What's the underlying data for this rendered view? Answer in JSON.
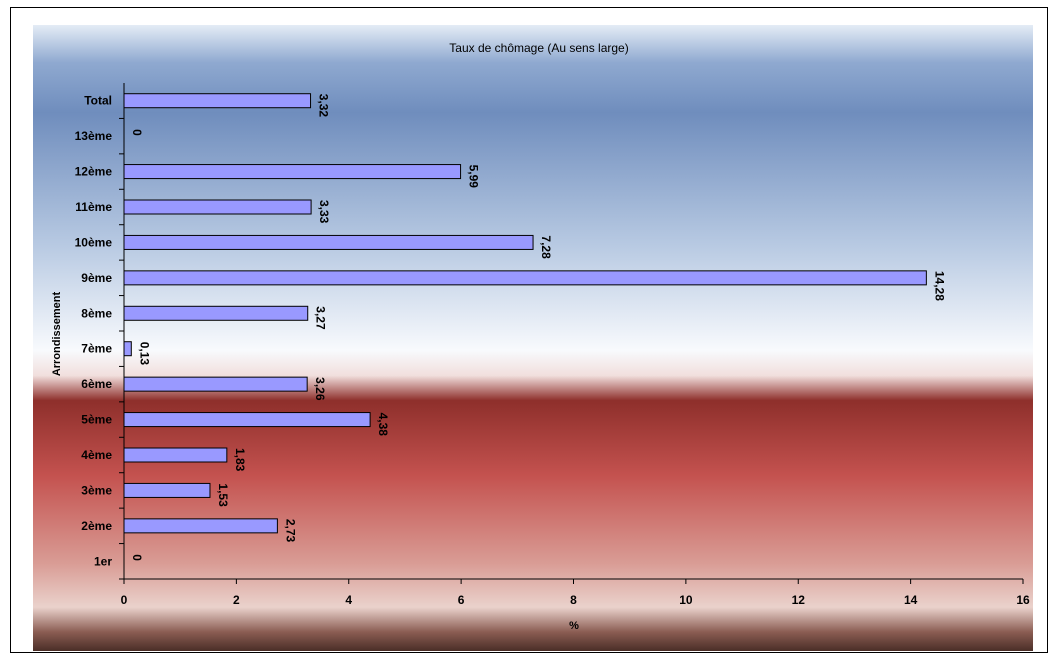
{
  "chart_data": {
    "type": "bar",
    "orientation": "horizontal",
    "title": "Taux de chômage (Au sens large)",
    "xlabel": "%",
    "ylabel": "Arrondissement",
    "xlim": [
      0,
      16
    ],
    "xticks": [
      0,
      2,
      4,
      6,
      8,
      10,
      12,
      14,
      16
    ],
    "grid": false,
    "legend": "none",
    "categories": [
      "1er",
      "2ème",
      "3ème",
      "4ème",
      "5ème",
      "6ème",
      "7ème",
      "8ème",
      "9ème",
      "10ème",
      "11ème",
      "12ème",
      "13ème",
      "Total"
    ],
    "values": [
      0,
      2.73,
      1.53,
      1.83,
      4.38,
      3.26,
      0.13,
      3.27,
      14.28,
      7.28,
      3.33,
      5.99,
      0,
      3.32
    ],
    "value_labels": [
      "0",
      "2,73",
      "1,53",
      "1,83",
      "4,38",
      "3,26",
      "0,13",
      "3,27",
      "14,28",
      "7,28",
      "3,33",
      "5,99",
      "0",
      "3,32"
    ],
    "colors": {
      "bar_fill": "#9999ff",
      "bar_stroke": "#000000",
      "plot_top": "#6f8dbd",
      "plot_middle": "#f4f6fb",
      "plot_lower": "#c4524f",
      "plot_bottom": "#5a3a33"
    }
  }
}
